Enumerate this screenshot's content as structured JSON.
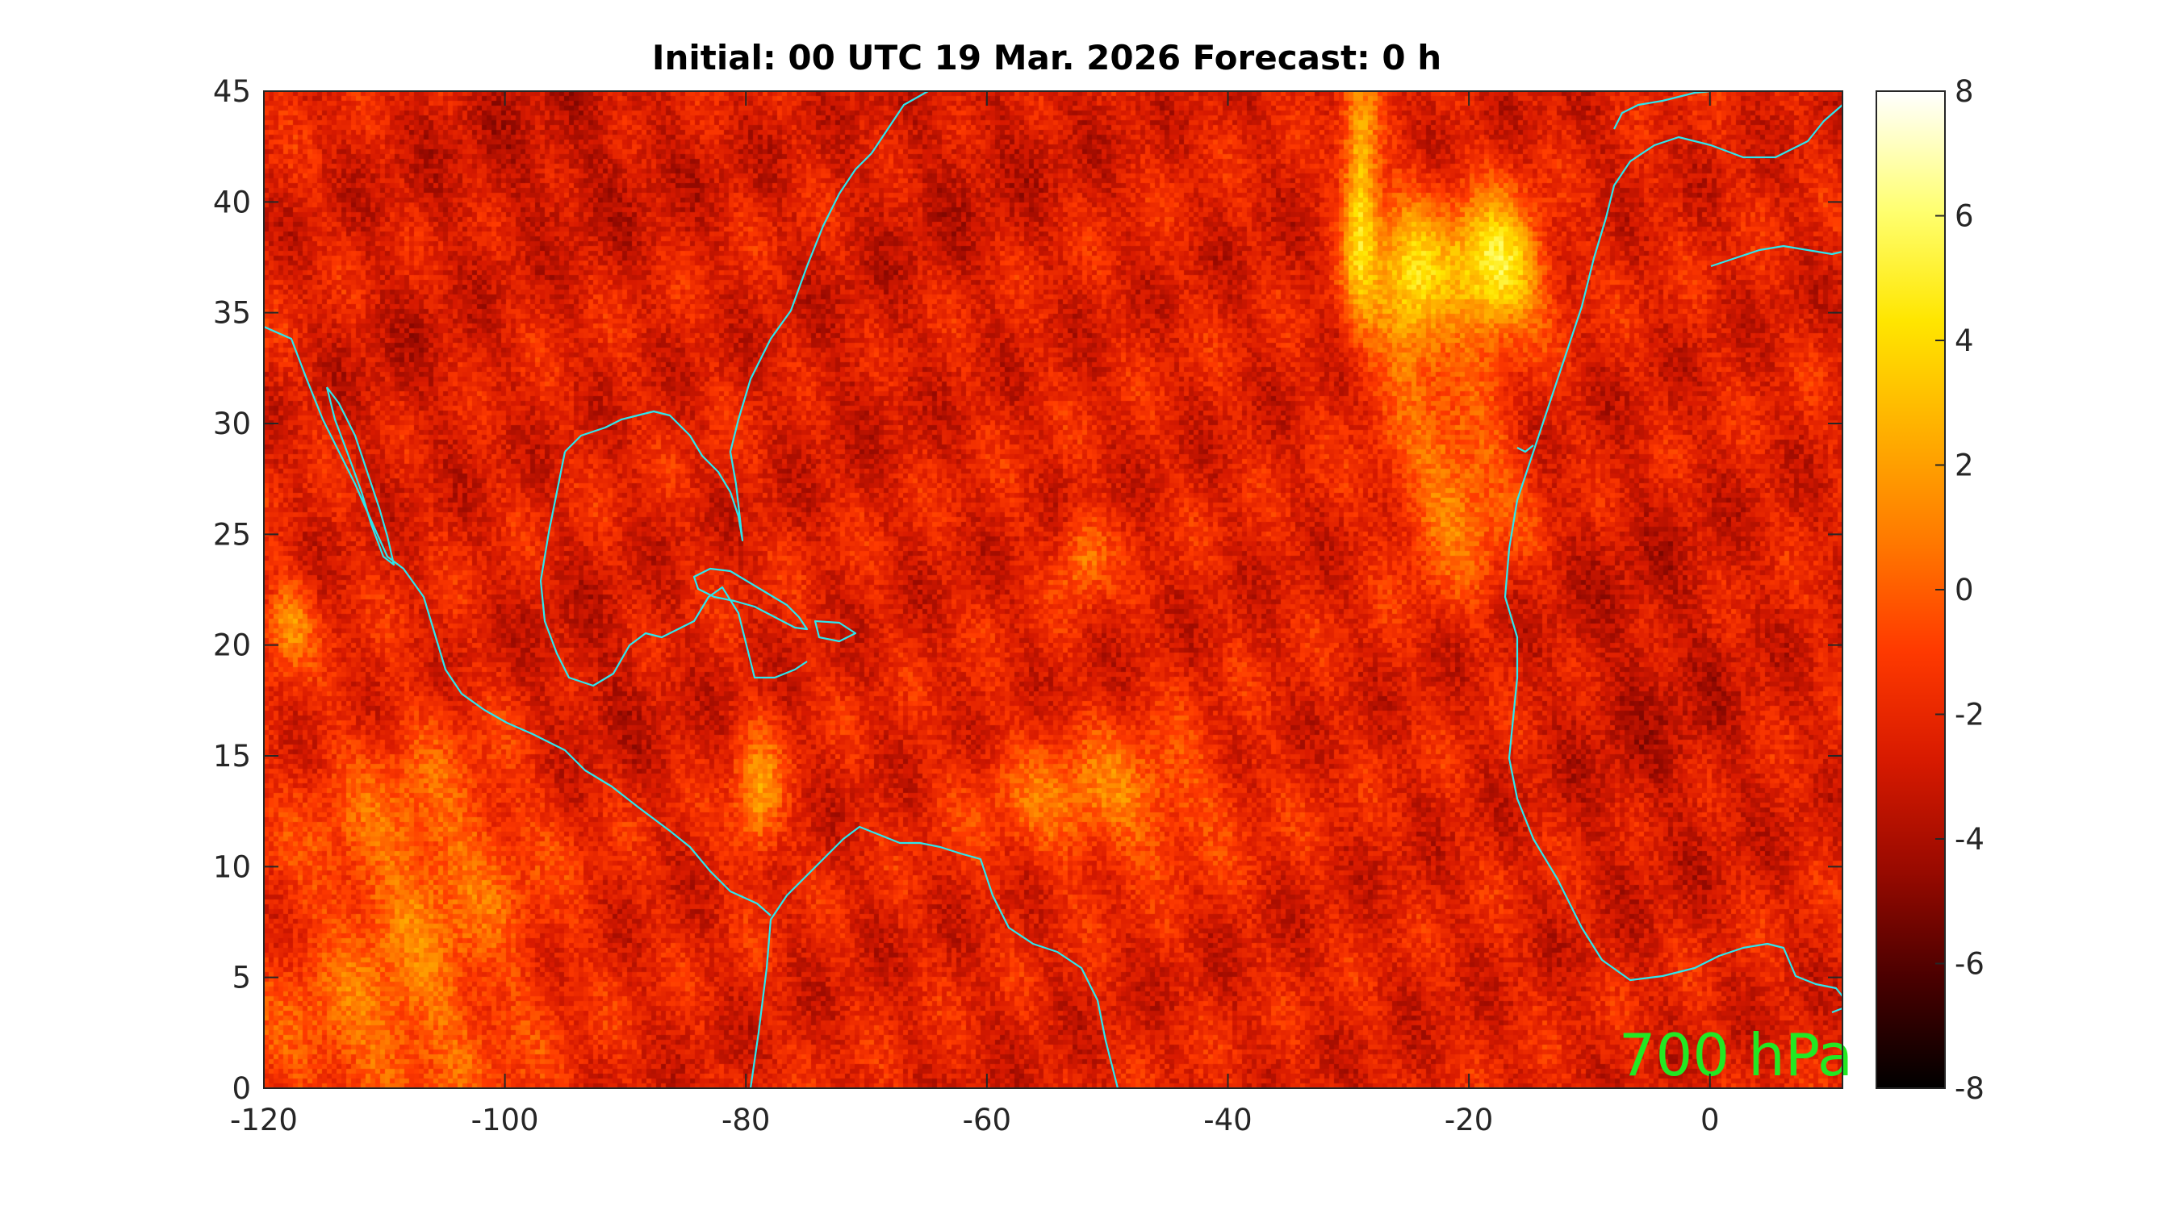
{
  "title": "Initial: 00 UTC 19 Mar. 2026 Forecast: 0 h",
  "level_label": "700 hPa",
  "colors": {
    "coastline": "#2ee6ee",
    "level_label": "#22e822",
    "colormap": [
      "#000000",
      "#4a0000",
      "#9a0a00",
      "#d81a00",
      "#ff3a00",
      "#ff7a00",
      "#ffb000",
      "#ffe600",
      "#ffff70",
      "#ffffff"
    ]
  },
  "chart_data": {
    "type": "heatmap",
    "x_axis": {
      "range": [
        -120,
        11
      ],
      "ticks": [
        -120,
        -100,
        -80,
        -60,
        -40,
        -20,
        0
      ],
      "tick_labels": [
        "-120",
        "-100",
        "-80",
        "-60",
        "-40",
        "-20",
        "0"
      ]
    },
    "y_axis": {
      "range": [
        0,
        45
      ],
      "ticks": [
        0,
        5,
        10,
        15,
        20,
        25,
        30,
        35,
        40,
        45
      ],
      "tick_labels": [
        "0",
        "5",
        "10",
        "15",
        "20",
        "25",
        "30",
        "35",
        "40",
        "45"
      ]
    },
    "colorbar": {
      "range": [
        -8,
        8
      ],
      "ticks": [
        -8,
        -6,
        -4,
        -2,
        0,
        2,
        4,
        6,
        8
      ],
      "tick_labels": [
        "-8",
        "-6",
        "-4",
        "-2",
        "0",
        "2",
        "4",
        "6",
        "8"
      ]
    },
    "background_value": -2.3,
    "features": [
      {
        "kind": "max",
        "lon": -18,
        "lat": 37,
        "value": 7.2,
        "slon": 4,
        "slat": 3
      },
      {
        "kind": "max",
        "lon": -25,
        "lat": 36,
        "value": 5,
        "slon": 3,
        "slat": 4
      },
      {
        "kind": "max",
        "lon": -29,
        "lat": 40,
        "value": 5.5,
        "slon": 1.5,
        "slat": 5
      },
      {
        "kind": "max",
        "lon": -21,
        "lat": 27,
        "value": 2,
        "slon": 5,
        "slat": 4
      },
      {
        "kind": "min",
        "lon": -22,
        "lat": 33,
        "value": -2,
        "slon": 3,
        "slat": 2.5
      },
      {
        "kind": "min",
        "lon": -95,
        "lat": 42,
        "value": -3.5,
        "slon": 12,
        "slat": 4
      },
      {
        "kind": "min",
        "lon": -65,
        "lat": 40,
        "value": -3,
        "slon": 8,
        "slat": 5
      },
      {
        "kind": "min",
        "lon": -72,
        "lat": 32,
        "value": -3,
        "slon": 5,
        "slat": 4
      },
      {
        "kind": "min",
        "lon": -57,
        "lat": 43,
        "value": -3,
        "slon": 7,
        "slat": 3
      },
      {
        "kind": "min",
        "lon": -37,
        "lat": 40,
        "value": -2.5,
        "slon": 5,
        "slat": 6
      },
      {
        "kind": "min",
        "lon": -93,
        "lat": 18,
        "value": -3.5,
        "slon": 6,
        "slat": 4
      },
      {
        "kind": "min",
        "lon": -5,
        "lat": 18,
        "value": -3.5,
        "slon": 8,
        "slat": 9
      },
      {
        "kind": "min",
        "lon": -108,
        "lat": 33,
        "value": -3,
        "slon": 6,
        "slat": 5
      },
      {
        "kind": "min",
        "lon": -10,
        "lat": 43,
        "value": -3,
        "slon": 5,
        "slat": 2
      },
      {
        "kind": "max",
        "lon": -107,
        "lat": 10,
        "value": 1.2,
        "slon": 10,
        "slat": 6
      },
      {
        "kind": "max",
        "lon": -50,
        "lat": 13,
        "value": 1.5,
        "slon": 10,
        "slat": 3
      },
      {
        "kind": "max",
        "lon": -79,
        "lat": 13,
        "value": 2.5,
        "slon": 2,
        "slat": 3
      },
      {
        "kind": "max",
        "lon": -52,
        "lat": 24,
        "value": 1.5,
        "slon": 2,
        "slat": 2
      },
      {
        "kind": "max",
        "lon": -118,
        "lat": 21,
        "value": 2,
        "slon": 2,
        "slat": 2
      },
      {
        "kind": "max",
        "lon": -110,
        "lat": 2,
        "value": 0.5,
        "slon": 12,
        "slat": 4
      }
    ]
  }
}
